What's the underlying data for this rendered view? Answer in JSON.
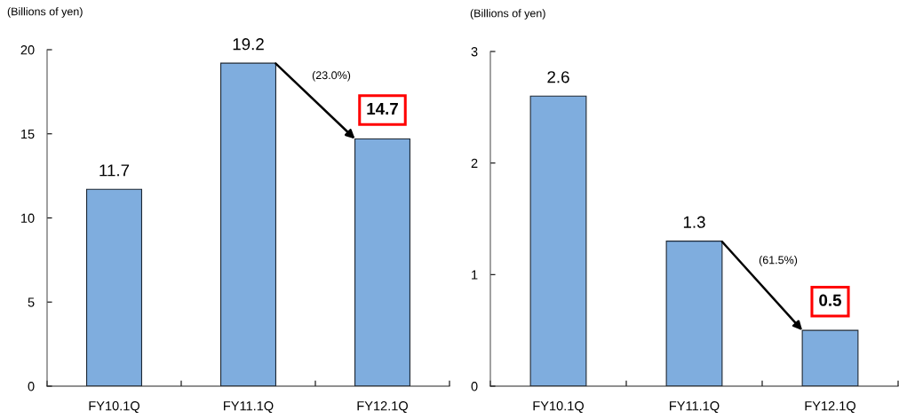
{
  "chart_data": [
    {
      "type": "bar",
      "ylabel": "(Billions of yen)",
      "categories": [
        "FY10.1Q",
        "FY11.1Q",
        "FY12.1Q"
      ],
      "values": [
        11.7,
        19.2,
        14.7
      ],
      "color": "#7fadde",
      "ylim": [
        0,
        20
      ],
      "yticks": [
        0,
        5,
        10,
        15,
        20
      ],
      "data_labels": true,
      "annotations": [
        "(23.0%)"
      ]
    },
    {
      "type": "bar",
      "ylabel": "(Billions of yen)",
      "categories": [
        "FY10.1Q",
        "FY11.1Q",
        "FY12.1Q"
      ],
      "values": [
        2.6,
        1.3,
        0.5
      ],
      "color": "#7fadde",
      "ylim": [
        0,
        3
      ],
      "yticks": [
        0,
        1,
        2,
        3
      ],
      "data_labels": true,
      "annotations": [
        "(61.5%)"
      ]
    }
  ]
}
